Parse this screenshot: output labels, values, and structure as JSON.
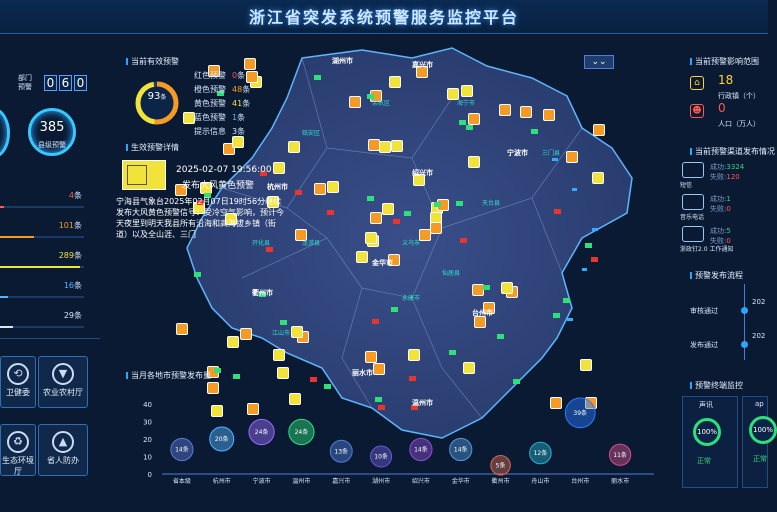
{
  "header": {
    "title": "浙江省突发系统预警服务监控平台"
  },
  "left": {
    "dept_label_1": "部门",
    "dept_label_2": "预警",
    "dept_digits": [
      "0",
      "6",
      "0"
    ],
    "county_count": "385",
    "county_label": "县级预警",
    "stats": [
      {
        "value": "4",
        "unit": "条",
        "color": "#ff5a4f",
        "fill": 0.05
      },
      {
        "value": "101",
        "unit": "条",
        "color": "#f59a23",
        "fill": 0.4
      },
      {
        "value": "289",
        "unit": "条",
        "color": "#f2e33a",
        "fill": 0.95
      },
      {
        "value": "16",
        "unit": "条",
        "color": "#4fb6ff",
        "fill": 0.1
      },
      {
        "value": "29",
        "unit": "条",
        "color": "#d6e6ff",
        "fill": 0.15
      }
    ],
    "tiles": [
      {
        "label": "卫健委",
        "icon": "health-commission-icon"
      },
      {
        "label": "农业农村厅",
        "icon": "agriculture-icon"
      },
      {
        "label": "生态环境厅",
        "icon": "environment-icon"
      },
      {
        "label": "省人防办",
        "icon": "civil-defense-icon"
      }
    ]
  },
  "current": {
    "title": "当前有效预警",
    "total": "93",
    "total_unit": "条",
    "rows": [
      {
        "label": "红色预警",
        "value": "0",
        "unit": "条",
        "color": "#ff5a4f"
      },
      {
        "label": "橙色预警",
        "value": "48",
        "unit": "条",
        "color": "#f59a23"
      },
      {
        "label": "黄色预警",
        "value": "41",
        "unit": "条",
        "color": "#f2e33a"
      },
      {
        "label": "蓝色预警",
        "value": "1",
        "unit": "条",
        "color": "#4fb6ff"
      },
      {
        "label": "提示信息",
        "value": "3",
        "unit": "条",
        "color": "#d6e6ff"
      }
    ]
  },
  "detail": {
    "title": "生效预警详情",
    "time": "2025-02-07 19:56:00",
    "headline": "发布大风黄色预警",
    "body": "宁海县气象台2025年02月07日19时56分继续发布大风黄色预警信号：受冷空气影响，预计今天夜里到明天我县所有沿海和高海拔乡镇（街道）以及全山涯、三门"
  },
  "map": {
    "cities": [
      "杭州市",
      "湖州市",
      "嘉兴市",
      "绍兴市",
      "金华市",
      "衢州市",
      "台州市",
      "丽水市",
      "温州市",
      "宁波市"
    ],
    "regions": [
      "临安区",
      "三门县",
      "义乌市",
      "永康市",
      "龙游县",
      "开化县",
      "江山市",
      "天台县",
      "仙居县",
      "海宁市",
      "余杭区"
    ]
  },
  "monthly": {
    "title": "当月各地市预警发布量",
    "ylabel_ticks": [
      "40",
      "30",
      "20",
      "10",
      "0"
    ],
    "bubbles": [
      {
        "city": "省本级",
        "label": "14条",
        "value": 14,
        "color": "#5b7bd8"
      },
      {
        "city": "杭州市",
        "label": "20条",
        "value": 20,
        "color": "#4fb6ff"
      },
      {
        "city": "宁波市",
        "label": "24条",
        "value": 24,
        "color": "#9a6bff"
      },
      {
        "city": "温州市",
        "label": "24条",
        "value": 24,
        "color": "#2ee07a"
      },
      {
        "city": "嘉兴市",
        "label": "13条",
        "value": 13,
        "color": "#4f7fd8"
      },
      {
        "city": "湖州市",
        "label": "10条",
        "value": 10,
        "color": "#6b5bd8"
      },
      {
        "city": "绍兴市",
        "label": "14条",
        "value": 14,
        "color": "#8e4fd8"
      },
      {
        "city": "金华市",
        "label": "14条",
        "value": 14,
        "color": "#4f9ad8"
      },
      {
        "city": "衢州市",
        "label": "5条",
        "value": 5,
        "color": "#d86b4f"
      },
      {
        "city": "舟山市",
        "label": "12条",
        "value": 12,
        "color": "#2ab0c8"
      },
      {
        "city": "台州市",
        "label": "39条",
        "value": 39,
        "color": "#2a7bff"
      },
      {
        "city": "丽水市",
        "label": "11条",
        "value": 11,
        "color": "#d84f8e"
      }
    ],
    "ylim": [
      0,
      40
    ]
  },
  "right": {
    "impact_title": "当前预警影响范围",
    "admin_value": "18",
    "admin_label": "行政镇（个）",
    "people_value": "0",
    "people_label": "人口（万人）",
    "channel_title": "当前预警渠道发布情况",
    "channels": [
      {
        "name": "短信",
        "ok_label": "成功:",
        "ok": "3324",
        "fail_label": "失败:",
        "fail": "120"
      },
      {
        "name": "音乐电话",
        "ok_label": "成功:",
        "ok": "1",
        "fail_label": "失败:",
        "fail": "0"
      },
      {
        "name": "浙政钉2.0 工作通知",
        "ok_label": "成功:",
        "ok": "5",
        "fail_label": "失败:",
        "fail": "0"
      }
    ],
    "flow_title": "预警发布流程",
    "flow_steps": [
      {
        "label": "审核通过",
        "meta": "202"
      },
      {
        "label": "发布通过",
        "meta": "202"
      }
    ],
    "terminal_title": "预警终端监控",
    "terminals": [
      {
        "name": "声讯",
        "pct": "100%",
        "status": "正常"
      },
      {
        "name": "ap",
        "pct": "100%",
        "status": "正常"
      }
    ]
  },
  "colors": {
    "accent": "#2aa6ff",
    "orange": "#f59a23",
    "yellow": "#f2e33a",
    "red": "#e8352f"
  }
}
